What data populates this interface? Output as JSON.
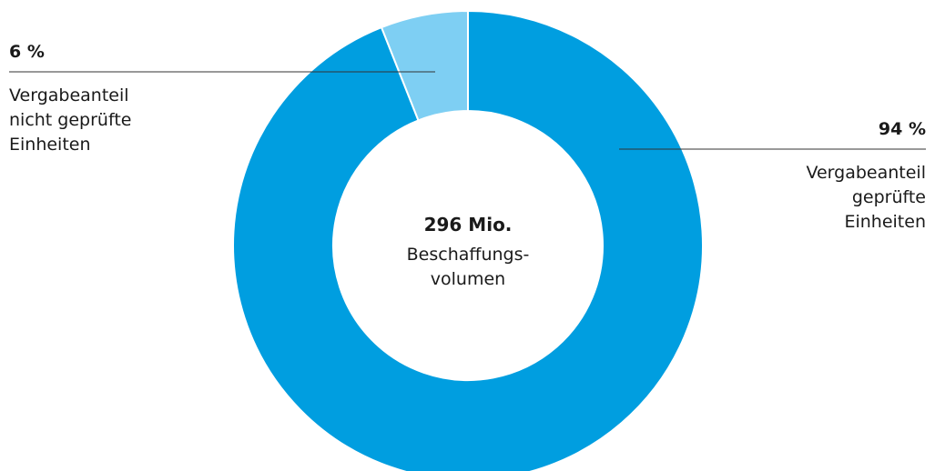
{
  "chart_data": {
    "type": "pie",
    "donut": true,
    "categories": [
      "Vergabeanteil geprüfte Einheiten",
      "Vergabeanteil nicht geprüfte Einheiten"
    ],
    "values": [
      94,
      6
    ],
    "value_labels": [
      "94 %",
      "6 %"
    ],
    "colors": [
      "#009ee0",
      "#7ecff3"
    ],
    "center": {
      "value": "296 Mio.",
      "label_lines": [
        "Beschaffungs-",
        "volumen"
      ]
    }
  },
  "annotations": {
    "left": {
      "percent": "6 %",
      "lines": [
        "Vergabeanteil",
        "nicht geprüfte",
        "Einheiten"
      ]
    },
    "right": {
      "percent": "94 %",
      "lines": [
        "Vergabeanteil",
        "geprüfte",
        "Einheiten"
      ]
    }
  }
}
